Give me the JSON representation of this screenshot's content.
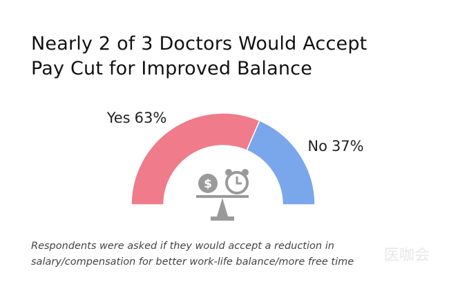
{
  "chart_data": {
    "type": "pie",
    "title": "Nearly 2 of 3 Doctors Would Accept Pay Cut for Improved Balance",
    "categories": [
      "Yes",
      "No"
    ],
    "values": [
      63,
      37
    ],
    "value_labels": [
      "63%",
      "37%"
    ],
    "colors": [
      "#ef7b8b",
      "#7aa7ec"
    ],
    "caption": "Respondents were asked if they would accept a reduction in salary/compensation for better work-life balance/more free time"
  },
  "watermark": "医咖会"
}
